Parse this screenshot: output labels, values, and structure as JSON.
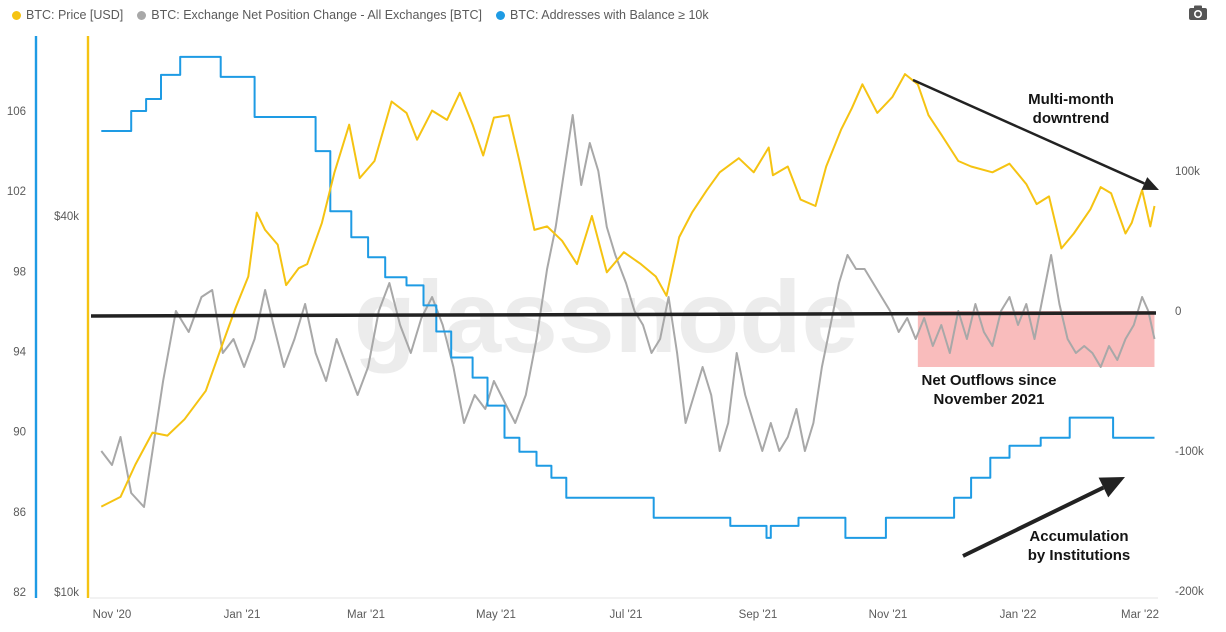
{
  "legend": [
    {
      "label": "BTC: Price [USD]",
      "color": "#F5C312"
    },
    {
      "label": "BTC: Exchange Net Position Change - All Exchanges [BTC]",
      "color": "#A8A8A8"
    },
    {
      "label": "BTC: Addresses with Balance ≥ 10k",
      "color": "#1E9BE4"
    }
  ],
  "toolbar": {
    "camera_icon": "camera-icon"
  },
  "watermark": "glassnode",
  "chart_data": {
    "type": "line",
    "x_ticks": [
      "Nov '20",
      "Jan '21",
      "Mar '21",
      "May '21",
      "Jul '21",
      "Sep '21",
      "Nov '21",
      "Jan '22",
      "Mar '22"
    ],
    "x_range": [
      "2020-10-27",
      "2022-03-08"
    ],
    "y_left_addresses": {
      "ticks": [
        "82",
        "86",
        "90",
        "94",
        "98",
        "102",
        "106"
      ],
      "range": [
        82,
        109.5
      ]
    },
    "y_left_price": {
      "ticks": [
        "$10k",
        "$40k"
      ],
      "scale": "log"
    },
    "y_right_net_position": {
      "ticks": [
        "100k",
        "0",
        "-100k",
        "-200k"
      ],
      "range": [
        -200000,
        200000
      ]
    },
    "series": [
      {
        "name": "BTC: Addresses with Balance ≥ 10k",
        "color": "#1E9BE4",
        "axis": "left",
        "points": [
          [
            "2020-10-27",
            105
          ],
          [
            "2020-11-10",
            106
          ],
          [
            "2020-11-17",
            106.6
          ],
          [
            "2020-11-24",
            107.8
          ],
          [
            "2020-12-03",
            108.7
          ],
          [
            "2020-12-22",
            107.7
          ],
          [
            "2021-01-07",
            105.7
          ],
          [
            "2021-01-28",
            105.7
          ],
          [
            "2021-02-05",
            104
          ],
          [
            "2021-02-12",
            101
          ],
          [
            "2021-02-22",
            99.7
          ],
          [
            "2021-03-02",
            98.7
          ],
          [
            "2021-03-10",
            97.7
          ],
          [
            "2021-03-20",
            97.3
          ],
          [
            "2021-03-28",
            96.3
          ],
          [
            "2021-04-03",
            95
          ],
          [
            "2021-04-10",
            93.7
          ],
          [
            "2021-04-20",
            92.7
          ],
          [
            "2021-04-27",
            91.3
          ],
          [
            "2021-05-05",
            89.7
          ],
          [
            "2021-05-12",
            89
          ],
          [
            "2021-05-20",
            88.3
          ],
          [
            "2021-05-27",
            87.7
          ],
          [
            "2021-06-03",
            86.7
          ],
          [
            "2021-06-20",
            86.7
          ],
          [
            "2021-07-10",
            86.7
          ],
          [
            "2021-07-14",
            85.7
          ],
          [
            "2021-08-15",
            85.7
          ],
          [
            "2021-08-19",
            85.3
          ],
          [
            "2021-09-02",
            85.3
          ],
          [
            "2021-09-05",
            84.7
          ],
          [
            "2021-09-07",
            85.3
          ],
          [
            "2021-09-15",
            85.3
          ],
          [
            "2021-09-20",
            85.7
          ],
          [
            "2021-10-05",
            85.7
          ],
          [
            "2021-10-12",
            84.7
          ],
          [
            "2021-10-27",
            84.7
          ],
          [
            "2021-10-31",
            85.7
          ],
          [
            "2021-11-25",
            85.7
          ],
          [
            "2021-12-02",
            86.7
          ],
          [
            "2021-12-10",
            87.7
          ],
          [
            "2021-12-19",
            88.7
          ],
          [
            "2021-12-28",
            89.3
          ],
          [
            "2022-01-12",
            89.7
          ],
          [
            "2022-01-23",
            89.7
          ],
          [
            "2022-01-26",
            90.7
          ],
          [
            "2022-02-12",
            90.7
          ],
          [
            "2022-02-16",
            89.7
          ],
          [
            "2022-03-08",
            89.7
          ]
        ]
      },
      {
        "name": "BTC: Price [USD]",
        "color": "#F5C312",
        "axis": "price",
        "points": [
          [
            "2020-10-27",
            13700
          ],
          [
            "2020-11-05",
            14200
          ],
          [
            "2020-11-12",
            16000
          ],
          [
            "2020-11-20",
            18000
          ],
          [
            "2020-11-27",
            17800
          ],
          [
            "2020-12-05",
            18900
          ],
          [
            "2020-12-15",
            21000
          ],
          [
            "2020-12-22",
            24500
          ],
          [
            "2020-12-29",
            28500
          ],
          [
            "2021-01-04",
            32000
          ],
          [
            "2021-01-08",
            40500
          ],
          [
            "2021-01-12",
            38000
          ],
          [
            "2021-01-18",
            36000
          ],
          [
            "2021-01-22",
            31000
          ],
          [
            "2021-01-28",
            33000
          ],
          [
            "2021-02-01",
            33500
          ],
          [
            "2021-02-08",
            39000
          ],
          [
            "2021-02-14",
            47000
          ],
          [
            "2021-02-21",
            56000
          ],
          [
            "2021-02-26",
            46000
          ],
          [
            "2021-03-05",
            49000
          ],
          [
            "2021-03-13",
            61000
          ],
          [
            "2021-03-20",
            58500
          ],
          [
            "2021-03-25",
            53000
          ],
          [
            "2021-04-01",
            59000
          ],
          [
            "2021-04-08",
            57000
          ],
          [
            "2021-04-14",
            63000
          ],
          [
            "2021-04-20",
            56000
          ],
          [
            "2021-04-25",
            50000
          ],
          [
            "2021-04-30",
            57500
          ],
          [
            "2021-05-07",
            58000
          ],
          [
            "2021-05-12",
            49000
          ],
          [
            "2021-05-19",
            38000
          ],
          [
            "2021-05-25",
            38500
          ],
          [
            "2021-06-01",
            36500
          ],
          [
            "2021-06-08",
            33500
          ],
          [
            "2021-06-15",
            40000
          ],
          [
            "2021-06-22",
            32500
          ],
          [
            "2021-06-30",
            35000
          ],
          [
            "2021-07-08",
            33500
          ],
          [
            "2021-07-15",
            32000
          ],
          [
            "2021-07-20",
            29800
          ],
          [
            "2021-07-26",
            37000
          ],
          [
            "2021-08-01",
            40500
          ],
          [
            "2021-08-08",
            44000
          ],
          [
            "2021-08-14",
            47000
          ],
          [
            "2021-08-23",
            49500
          ],
          [
            "2021-08-30",
            47000
          ],
          [
            "2021-09-06",
            51500
          ],
          [
            "2021-09-08",
            46500
          ],
          [
            "2021-09-15",
            48000
          ],
          [
            "2021-09-21",
            42500
          ],
          [
            "2021-09-28",
            41500
          ],
          [
            "2021-10-03",
            48000
          ],
          [
            "2021-10-10",
            55000
          ],
          [
            "2021-10-15",
            59500
          ],
          [
            "2021-10-20",
            65000
          ],
          [
            "2021-10-27",
            58500
          ],
          [
            "2021-11-03",
            62000
          ],
          [
            "2021-11-09",
            67500
          ],
          [
            "2021-11-15",
            65000
          ],
          [
            "2021-11-20",
            58000
          ],
          [
            "2021-11-26",
            54000
          ],
          [
            "2021-12-04",
            49000
          ],
          [
            "2021-12-10",
            48000
          ],
          [
            "2021-12-20",
            47000
          ],
          [
            "2021-12-28",
            48500
          ],
          [
            "2022-01-05",
            45000
          ],
          [
            "2022-01-10",
            41800
          ],
          [
            "2022-01-16",
            43000
          ],
          [
            "2022-01-22",
            35500
          ],
          [
            "2022-01-28",
            37500
          ],
          [
            "2022-02-05",
            41000
          ],
          [
            "2022-02-10",
            44500
          ],
          [
            "2022-02-15",
            43500
          ],
          [
            "2022-02-22",
            37500
          ],
          [
            "2022-02-25",
            39000
          ],
          [
            "2022-03-02",
            44000
          ],
          [
            "2022-03-06",
            38500
          ],
          [
            "2022-03-08",
            41500
          ]
        ]
      },
      {
        "name": "BTC: Exchange Net Position Change - All Exchanges [BTC]",
        "color": "#A8A8A8",
        "axis": "right",
        "points": [
          [
            "2020-10-27",
            -100000
          ],
          [
            "2020-11-01",
            -110000
          ],
          [
            "2020-11-05",
            -90000
          ],
          [
            "2020-11-10",
            -130000
          ],
          [
            "2020-11-16",
            -140000
          ],
          [
            "2020-11-20",
            -100000
          ],
          [
            "2020-11-25",
            -50000
          ],
          [
            "2020-12-01",
            0
          ],
          [
            "2020-12-07",
            -15000
          ],
          [
            "2020-12-13",
            10000
          ],
          [
            "2020-12-18",
            15000
          ],
          [
            "2020-12-23",
            -30000
          ],
          [
            "2020-12-28",
            -20000
          ],
          [
            "2021-01-02",
            -40000
          ],
          [
            "2021-01-07",
            -20000
          ],
          [
            "2021-01-12",
            15000
          ],
          [
            "2021-01-16",
            -10000
          ],
          [
            "2021-01-21",
            -40000
          ],
          [
            "2021-01-26",
            -20000
          ],
          [
            "2021-01-31",
            5000
          ],
          [
            "2021-02-05",
            -30000
          ],
          [
            "2021-02-10",
            -50000
          ],
          [
            "2021-02-15",
            -20000
          ],
          [
            "2021-02-20",
            -40000
          ],
          [
            "2021-02-25",
            -60000
          ],
          [
            "2021-03-02",
            -40000
          ],
          [
            "2021-03-07",
            0
          ],
          [
            "2021-03-12",
            20000
          ],
          [
            "2021-03-17",
            -10000
          ],
          [
            "2021-03-22",
            -30000
          ],
          [
            "2021-03-27",
            -5000
          ],
          [
            "2021-04-01",
            10000
          ],
          [
            "2021-04-06",
            -10000
          ],
          [
            "2021-04-11",
            -40000
          ],
          [
            "2021-04-16",
            -80000
          ],
          [
            "2021-04-21",
            -60000
          ],
          [
            "2021-04-26",
            -70000
          ],
          [
            "2021-04-30",
            -50000
          ],
          [
            "2021-05-05",
            -65000
          ],
          [
            "2021-05-10",
            -80000
          ],
          [
            "2021-05-15",
            -60000
          ],
          [
            "2021-05-20",
            -20000
          ],
          [
            "2021-05-25",
            30000
          ],
          [
            "2021-05-29",
            60000
          ],
          [
            "2021-06-02",
            100000
          ],
          [
            "2021-06-06",
            140000
          ],
          [
            "2021-06-10",
            90000
          ],
          [
            "2021-06-14",
            120000
          ],
          [
            "2021-06-18",
            100000
          ],
          [
            "2021-06-22",
            60000
          ],
          [
            "2021-06-26",
            40000
          ],
          [
            "2021-07-01",
            20000
          ],
          [
            "2021-07-05",
            0
          ],
          [
            "2021-07-09",
            -10000
          ],
          [
            "2021-07-13",
            -30000
          ],
          [
            "2021-07-17",
            -20000
          ],
          [
            "2021-07-21",
            10000
          ],
          [
            "2021-07-25",
            -30000
          ],
          [
            "2021-07-29",
            -80000
          ],
          [
            "2021-08-02",
            -60000
          ],
          [
            "2021-08-06",
            -40000
          ],
          [
            "2021-08-10",
            -60000
          ],
          [
            "2021-08-14",
            -100000
          ],
          [
            "2021-08-18",
            -80000
          ],
          [
            "2021-08-22",
            -30000
          ],
          [
            "2021-08-26",
            -60000
          ],
          [
            "2021-08-30",
            -80000
          ],
          [
            "2021-09-03",
            -100000
          ],
          [
            "2021-09-07",
            -80000
          ],
          [
            "2021-09-11",
            -100000
          ],
          [
            "2021-09-15",
            -90000
          ],
          [
            "2021-09-19",
            -70000
          ],
          [
            "2021-09-23",
            -100000
          ],
          [
            "2021-09-27",
            -80000
          ],
          [
            "2021-10-01",
            -40000
          ],
          [
            "2021-10-05",
            -10000
          ],
          [
            "2021-10-09",
            20000
          ],
          [
            "2021-10-13",
            40000
          ],
          [
            "2021-10-17",
            30000
          ],
          [
            "2021-10-21",
            30000
          ],
          [
            "2021-10-25",
            20000
          ],
          [
            "2021-10-29",
            10000
          ],
          [
            "2021-11-02",
            0
          ],
          [
            "2021-11-06",
            -15000
          ],
          [
            "2021-11-10",
            -5000
          ],
          [
            "2021-11-14",
            -20000
          ],
          [
            "2021-11-18",
            -5000
          ],
          [
            "2021-11-22",
            -25000
          ],
          [
            "2021-11-26",
            -10000
          ],
          [
            "2021-11-30",
            -30000
          ],
          [
            "2021-12-04",
            0
          ],
          [
            "2021-12-08",
            -20000
          ],
          [
            "2021-12-12",
            5000
          ],
          [
            "2021-12-16",
            -15000
          ],
          [
            "2021-12-20",
            -25000
          ],
          [
            "2021-12-24",
            0
          ],
          [
            "2021-12-28",
            10000
          ],
          [
            "2022-01-01",
            -10000
          ],
          [
            "2022-01-05",
            5000
          ],
          [
            "2022-01-09",
            -20000
          ],
          [
            "2022-01-13",
            10000
          ],
          [
            "2022-01-17",
            40000
          ],
          [
            "2022-01-21",
            5000
          ],
          [
            "2022-01-25",
            -20000
          ],
          [
            "2022-01-29",
            -30000
          ],
          [
            "2022-02-02",
            -25000
          ],
          [
            "2022-02-06",
            -30000
          ],
          [
            "2022-02-10",
            -40000
          ],
          [
            "2022-02-14",
            -25000
          ],
          [
            "2022-02-18",
            -35000
          ],
          [
            "2022-02-22",
            -20000
          ],
          [
            "2022-02-26",
            -10000
          ],
          [
            "2022-03-02",
            10000
          ],
          [
            "2022-03-05",
            0
          ],
          [
            "2022-03-08",
            -20000
          ]
        ]
      }
    ],
    "highlight_region": {
      "from": "2021-11-15",
      "to": "2022-03-08",
      "y_range": [
        -40000,
        0
      ],
      "color": "#F9B8B8"
    },
    "trend_lines": [
      {
        "name": "zero-line",
        "color": "#222222"
      },
      {
        "name": "downtrend-arrow",
        "color": "#222222"
      },
      {
        "name": "accumulation-arrow",
        "color": "#222222"
      }
    ],
    "annotations": [
      {
        "lines": [
          "Multi-month",
          "downtrend"
        ]
      },
      {
        "lines": [
          "Net Outflows since",
          "November 2021"
        ]
      },
      {
        "lines": [
          "Accumulation",
          "by Institutions"
        ]
      }
    ]
  }
}
